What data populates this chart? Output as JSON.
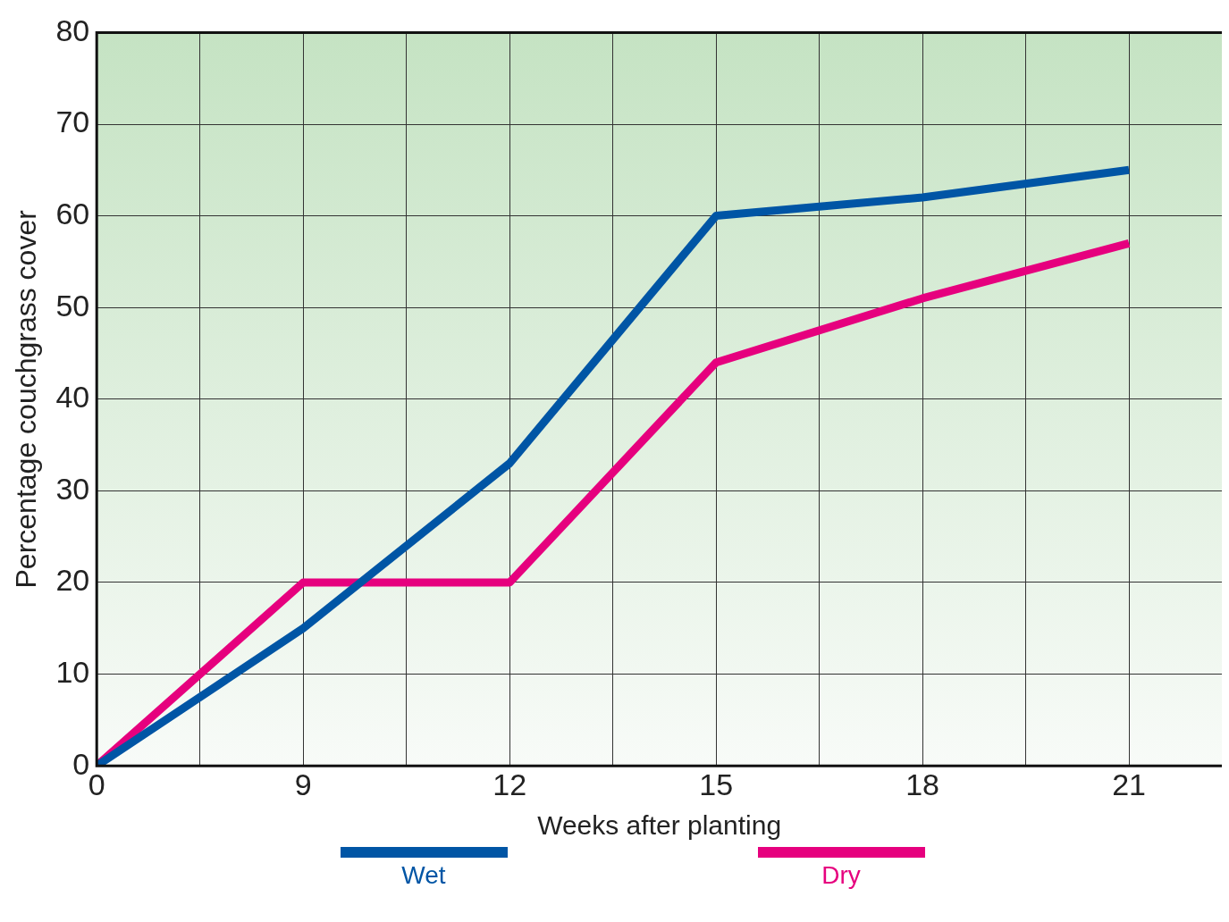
{
  "chart_data": {
    "type": "line",
    "xlabel": "Weeks after planting",
    "ylabel": "Percentage couchgrass cover",
    "categories": [
      "0",
      "9",
      "12",
      "15",
      "18",
      "21"
    ],
    "series": [
      {
        "name": "Wet",
        "color": "#0055a5",
        "values": [
          0,
          15,
          33,
          60,
          62,
          65
        ]
      },
      {
        "name": "Dry",
        "color": "#e6007e",
        "values": [
          0,
          20,
          20,
          44,
          51,
          57
        ]
      }
    ],
    "ylim": [
      0,
      80
    ],
    "yticks": [
      0,
      10,
      20,
      30,
      40,
      50,
      60,
      70,
      80
    ],
    "grid": true,
    "legend": "bottom",
    "marker": "none",
    "line_style": "solid"
  }
}
